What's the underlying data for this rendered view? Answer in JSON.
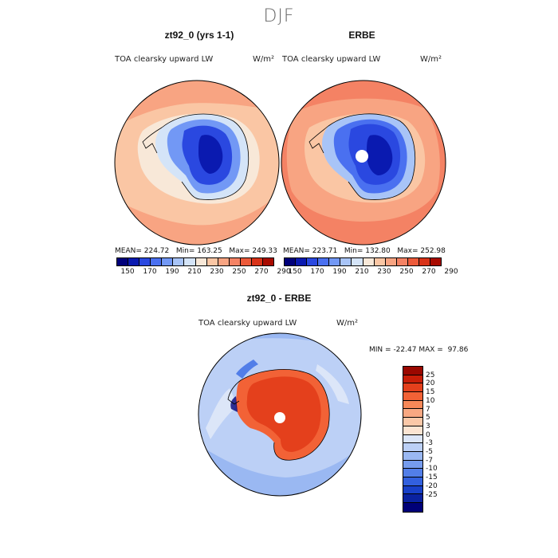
{
  "season": "DJF",
  "panel_left": {
    "title": "zt92_0 (yrs 1-1)",
    "variable": "TOA clearsky upward LW",
    "units": "W/m²",
    "stats": {
      "mean_label": "MEAN=",
      "mean": "224.72",
      "min_label": "Min=",
      "min": "163.25",
      "max_label": "Max=",
      "max": "249.33"
    }
  },
  "panel_right": {
    "title": "ERBE",
    "variable": "TOA clearsky upward LW",
    "units": "W/m²",
    "stats": {
      "mean_label": "MEAN=",
      "mean": "223.71",
      "min_label": "Min=",
      "min": "132.80",
      "max_label": "Max=",
      "max": "252.98"
    }
  },
  "colorbar_top": {
    "colors": [
      "#00007a",
      "#0a1ab0",
      "#2a48e0",
      "#4a70f0",
      "#7298f5",
      "#a8c4f7",
      "#d4e4f8",
      "#f8e8d8",
      "#fac6a4",
      "#f8a482",
      "#f48264",
      "#ec5a3a",
      "#d83218",
      "#a80a00"
    ],
    "ticks": [
      "150",
      "170",
      "190",
      "210",
      "230",
      "250",
      "270",
      "290"
    ]
  },
  "panel_diff": {
    "title": "zt92_0 - ERBE",
    "variable": "TOA clearsky upward LW",
    "units": "W/m²",
    "minmax": {
      "min_label": "MIN =",
      "min": "-22.47",
      "max_label": "MAX =",
      "max": "97.86"
    }
  },
  "colorbar_diff": {
    "colors": [
      "#9a0800",
      "#c81e08",
      "#e4401c",
      "#f26236",
      "#f78858",
      "#f8a882",
      "#fac8a8",
      "#fbe4d2",
      "#dce6f8",
      "#bcd0f6",
      "#9ab8f2",
      "#769cee",
      "#527ee8",
      "#3260de",
      "#1840c8",
      "#0a22a0",
      "#000078"
    ],
    "ticks": [
      "25",
      "20",
      "15",
      "10",
      "7",
      "5",
      "3",
      "0",
      "-3",
      "-5",
      "-7",
      "-10",
      "-15",
      "-20",
      "-25"
    ]
  }
}
